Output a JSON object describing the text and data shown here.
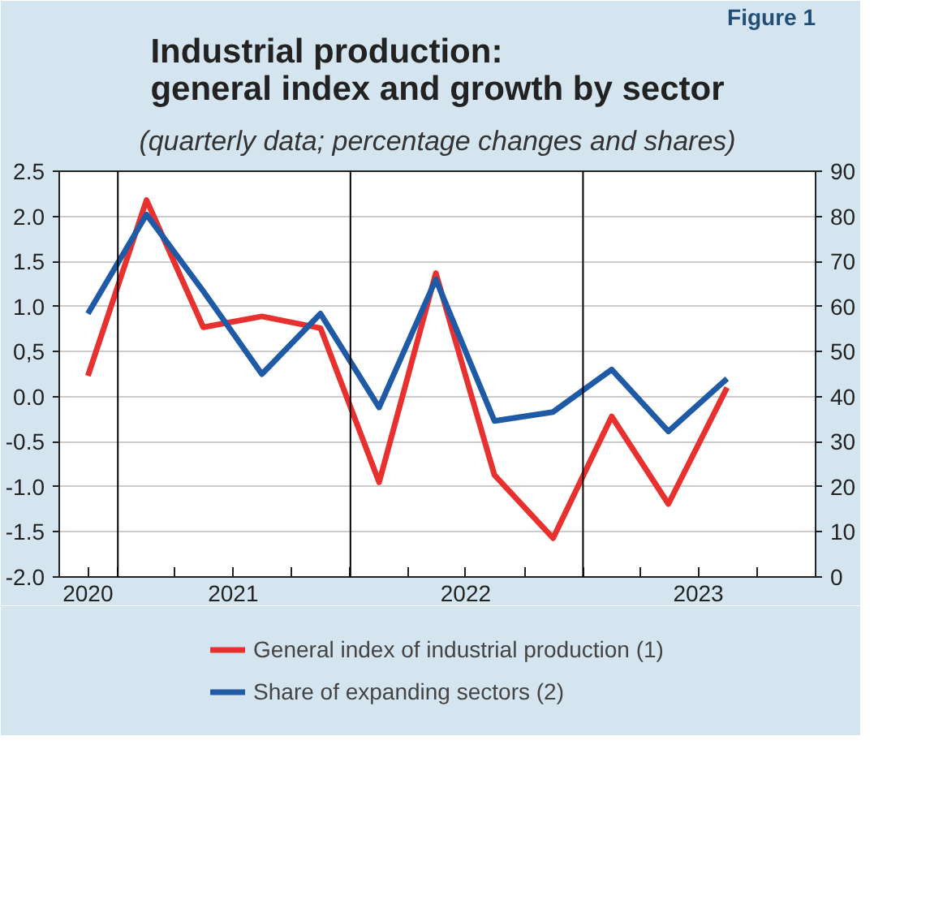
{
  "chart_data": {
    "type": "line",
    "title": "Industrial production:\ngeneral index and growth by sector",
    "subtitle": "(quarterly data; percentage changes and shares)",
    "annotations": [
      "Figure 1"
    ],
    "x": [
      "2020-11-15",
      "2021-02-15",
      "2021-05-15",
      "2021-08-15",
      "2021-11-15",
      "2022-02-15",
      "2022-05-15",
      "2022-08-15",
      "2022-11-15",
      "2023-02-15",
      "2023-05-15",
      "2023-08-15"
    ],
    "series": [
      {
        "name": "General index of industrial production (1)",
        "color": "#e8312f",
        "values": [
          0.23,
          2.18,
          0.77,
          0.89,
          0.76,
          -0.95,
          1.37,
          -0.87,
          -1.57,
          -0.22,
          -1.19,
          0.1
        ]
      },
      {
        "name": "Share of expanding sectors (2)",
        "color": "#1f5aa6",
        "axis": "y2",
        "values": [
          58.4,
          80.4,
          63.4,
          45,
          58.4,
          37.6,
          66,
          34.6,
          36.6,
          46,
          32.3,
          44
        ]
      }
    ],
    "xlim": [
      "2020-10-01",
      "2024-01-01"
    ],
    "xticks": [
      {
        "value": "2020-11-15",
        "label": "2020"
      },
      {
        "value": "2021-01-01",
        "label": null
      },
      {
        "value": "2021-04-01",
        "label": null
      },
      {
        "value": "2021-07-01",
        "label": "2021"
      },
      {
        "value": "2021-10-01",
        "label": null
      },
      {
        "value": "2022-01-01",
        "label": null
      },
      {
        "value": "2022-04-01",
        "label": null
      },
      {
        "value": "2022-07-01",
        "label": "2022"
      },
      {
        "value": "2022-10-01",
        "label": null
      },
      {
        "value": "2023-01-01",
        "label": null
      },
      {
        "value": "2023-04-01",
        "label": null
      },
      {
        "value": "2023-07-01",
        "label": "2023"
      },
      {
        "value": "2023-10-01",
        "label": null
      }
    ],
    "ylim": [
      -2.0,
      2.5
    ],
    "yticks": [
      {
        "value": -2,
        "label": "-2.0"
      },
      {
        "value": -1.5,
        "label": "-1.5"
      },
      {
        "value": -1,
        "label": "-1.0"
      },
      {
        "value": -0.5,
        "label": "-0.5"
      },
      {
        "value": 0,
        "label": "0.0"
      },
      {
        "value": 0.5,
        "label": "0,5"
      },
      {
        "value": 1,
        "label": "1.0"
      },
      {
        "value": 1.5,
        "label": "1.5"
      },
      {
        "value": 2,
        "label": "2.0"
      },
      {
        "value": 2.5,
        "label": "2.5"
      }
    ],
    "y2lim": [
      0,
      90
    ],
    "y2ticks": [
      0,
      10,
      20,
      30,
      40,
      50,
      60,
      70,
      80,
      90
    ],
    "ref_lines": [
      {
        "axis": "x",
        "value": "2021-01-01",
        "color": "#000000"
      },
      {
        "axis": "x",
        "value": "2022-01-01",
        "color": "#000000"
      },
      {
        "axis": "x",
        "value": "2023-01-01",
        "color": "#000000"
      }
    ],
    "grid": "y",
    "legend": "bottom",
    "marker": "none",
    "line_style": "solid"
  }
}
